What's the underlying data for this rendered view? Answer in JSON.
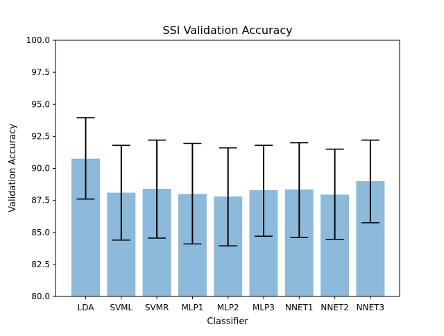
{
  "chart_data": {
    "type": "bar",
    "title": "SSI Validation Accuracy",
    "xlabel": "Classifier",
    "ylabel": "Validation Accuracy",
    "ylim": [
      80.0,
      100.0
    ],
    "y_ticks": [
      80.0,
      82.5,
      85.0,
      87.5,
      90.0,
      92.5,
      95.0,
      97.5,
      100.0
    ],
    "y_tick_labels": [
      "80.0",
      "82.5",
      "85.0",
      "87.5",
      "90.0",
      "92.5",
      "95.0",
      "97.5",
      "100.0"
    ],
    "grid": false,
    "categories": [
      "LDA",
      "SVML",
      "SVMR",
      "MLP1",
      "MLP2",
      "MLP3",
      "NNET1",
      "NNET2",
      "NNET3"
    ],
    "values": [
      90.75,
      88.1,
      88.4,
      88.0,
      87.8,
      88.3,
      88.35,
      87.95,
      89.0
    ],
    "error_low": [
      87.6,
      84.4,
      84.55,
      84.1,
      83.95,
      84.7,
      84.6,
      84.45,
      85.75
    ],
    "error_high": [
      93.95,
      91.8,
      92.2,
      91.95,
      91.6,
      91.8,
      92.0,
      91.5,
      92.2
    ],
    "bar_color": "#8db9da",
    "errorbar_color": "#000000"
  }
}
